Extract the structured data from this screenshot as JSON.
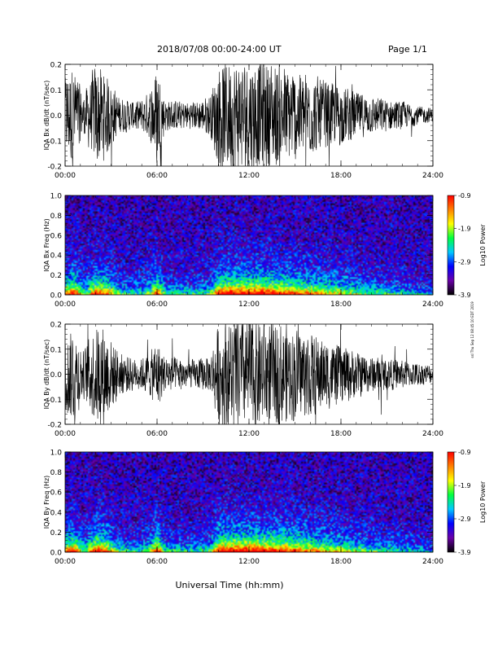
{
  "header": {
    "title": "2018/07/08  00:00-24:00 UT",
    "page": "Page 1/1"
  },
  "footer": {
    "xlabel": "Universal Time (hh:mm)"
  },
  "side_stamp": "ssl Thu Sep 12 08:45:10 EDT 2019",
  "colorbar": {
    "label": "Log10 Power",
    "ticks": [
      "-0.9",
      "-1.9",
      "-2.9",
      "-3.9"
    ],
    "range": [
      -3.9,
      -0.9
    ],
    "colormap": [
      "#000000",
      "#6a00a8",
      "#0000ff",
      "#00c8ff",
      "#00ff40",
      "#ffff00",
      "#ff8000",
      "#ff0000"
    ]
  },
  "chart_data": [
    {
      "type": "line",
      "name": "bx-timeseries",
      "ylabel": "IQA Bx dB/dt (nT/sec)",
      "x_ticks": [
        "00:00",
        "06:00",
        "12:00",
        "18:00",
        "24:00"
      ],
      "xlim": [
        0,
        24
      ],
      "ylim": [
        -0.2,
        0.2
      ],
      "y_ticks": [
        "0.2",
        "0.1",
        "0.0",
        "-0.1",
        "-0.2"
      ],
      "envelope": {
        "x_hours": [
          0,
          0.5,
          1.2,
          2.0,
          2.5,
          3.5,
          4.5,
          5.0,
          5.5,
          6.0,
          6.5,
          7.5,
          8.5,
          9.5,
          10.0,
          10.5,
          11.0,
          12.0,
          13.0,
          14.0,
          15.0,
          16.0,
          17.0,
          18.0,
          19.0,
          20.0,
          21.0,
          22.0,
          23.0,
          24.0
        ],
        "amplitude": [
          0.17,
          0.22,
          0.08,
          0.22,
          0.2,
          0.08,
          0.06,
          0.07,
          0.1,
          0.22,
          0.07,
          0.06,
          0.06,
          0.09,
          0.22,
          0.24,
          0.24,
          0.24,
          0.24,
          0.22,
          0.2,
          0.17,
          0.15,
          0.13,
          0.1,
          0.08,
          0.07,
          0.06,
          0.04,
          0.03
        ]
      }
    },
    {
      "type": "heatmap",
      "name": "bx-spectrogram",
      "ylabel": "IQA Bx Freq (Hz)",
      "x_ticks": [
        "00:00",
        "06:00",
        "12:00",
        "18:00",
        "24:00"
      ],
      "xlim": [
        0,
        24
      ],
      "ylim": [
        0,
        1.0
      ],
      "y_ticks": [
        "1.0",
        "0.8",
        "0.6",
        "0.4",
        "0.2",
        "0.0"
      ],
      "zrange": [
        -3.9,
        -0.9
      ]
    },
    {
      "type": "line",
      "name": "by-timeseries",
      "ylabel": "IQA By dB/dt (nT/sec)",
      "x_ticks": [
        "00:00",
        "06:00",
        "12:00",
        "18:00",
        "24:00"
      ],
      "xlim": [
        0,
        24
      ],
      "ylim": [
        -0.2,
        0.2
      ],
      "y_ticks": [
        "0.2",
        "0.1",
        "0.0",
        "-0.1",
        "-0.2"
      ],
      "envelope": {
        "x_hours": [
          0,
          0.5,
          1.2,
          2.0,
          2.5,
          3.5,
          4.5,
          5.0,
          5.5,
          6.0,
          6.5,
          7.5,
          8.5,
          9.5,
          10.0,
          10.5,
          11.0,
          12.0,
          13.0,
          14.0,
          15.0,
          16.0,
          17.0,
          18.0,
          19.0,
          20.0,
          21.0,
          22.0,
          23.0,
          24.0
        ],
        "amplitude": [
          0.15,
          0.22,
          0.1,
          0.22,
          0.22,
          0.1,
          0.07,
          0.07,
          0.09,
          0.15,
          0.08,
          0.07,
          0.06,
          0.08,
          0.22,
          0.24,
          0.24,
          0.24,
          0.24,
          0.22,
          0.2,
          0.18,
          0.15,
          0.13,
          0.1,
          0.08,
          0.07,
          0.06,
          0.05,
          0.04
        ]
      }
    },
    {
      "type": "heatmap",
      "name": "by-spectrogram",
      "ylabel": "IQA By Freq (Hz)",
      "x_ticks": [
        "00:00",
        "06:00",
        "12:00",
        "18:00",
        "24:00"
      ],
      "xlim": [
        0,
        24
      ],
      "ylim": [
        0,
        1.0
      ],
      "y_ticks": [
        "1.0",
        "0.8",
        "0.6",
        "0.4",
        "0.2",
        "0.0"
      ],
      "zrange": [
        -3.9,
        -0.9
      ]
    }
  ]
}
